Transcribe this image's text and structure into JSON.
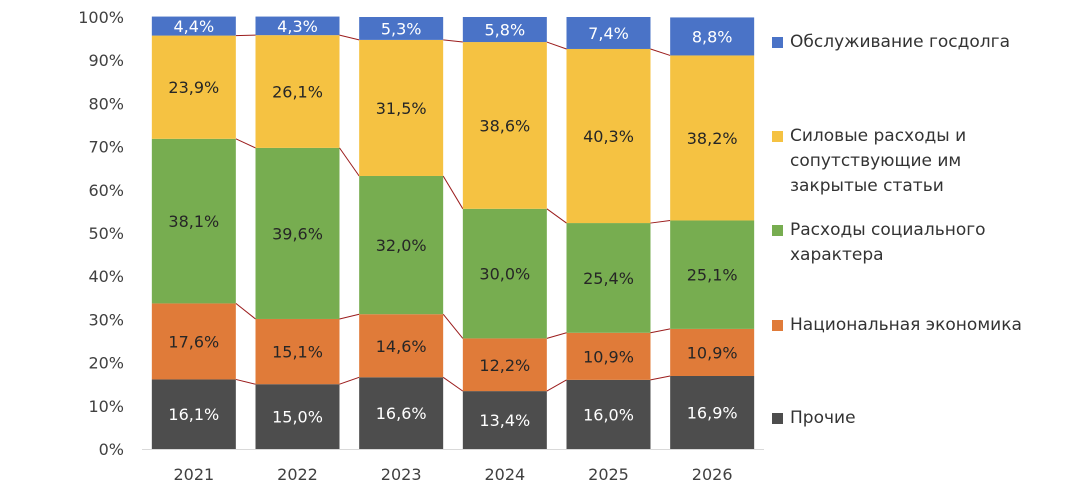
{
  "chart_data": {
    "type": "bar",
    "stacked": true,
    "percent": true,
    "categories": [
      "2021",
      "2022",
      "2023",
      "2024",
      "2025",
      "2026"
    ],
    "y_ticks": [
      "0%",
      "10%",
      "20%",
      "30%",
      "40%",
      "50%",
      "60%",
      "70%",
      "80%",
      "90%",
      "100%"
    ],
    "ylim": [
      0,
      100
    ],
    "legend_position": "right",
    "series": [
      {
        "name": "Прочие",
        "color": "#4d4d4d",
        "label_color": "#ffffff",
        "values": [
          16.1,
          15.0,
          16.6,
          13.4,
          16.0,
          16.9
        ],
        "labels": [
          "16,1%",
          "15,0%",
          "16,6%",
          "13,4%",
          "16,0%",
          "16,9%"
        ]
      },
      {
        "name": "Национальная экономика",
        "color": "#e07b39",
        "label_color": "#262626",
        "values": [
          17.6,
          15.1,
          14.6,
          12.2,
          10.9,
          10.9
        ],
        "labels": [
          "17,6%",
          "15,1%",
          "14,6%",
          "12,2%",
          "10,9%",
          "10,9%"
        ]
      },
      {
        "name": "Расходы социального характера",
        "color": "#77ad50",
        "label_color": "#262626",
        "values": [
          38.1,
          39.6,
          32.0,
          30.0,
          25.4,
          25.1
        ],
        "labels": [
          "38,1%",
          "39,6%",
          "32,0%",
          "30,0%",
          "25,4%",
          "25,1%"
        ]
      },
      {
        "name": "Силовые расходы и сопутствующие им закрытые статьи",
        "color": "#f5c242",
        "label_color": "#262626",
        "values": [
          23.9,
          26.1,
          31.5,
          38.6,
          40.3,
          38.2
        ],
        "labels": [
          "23,9%",
          "26,1%",
          "31,5%",
          "38,6%",
          "40,3%",
          "38,2%"
        ]
      },
      {
        "name": "Обслуживание госдолга",
        "color": "#4a73c7",
        "label_color": "#ffffff",
        "values": [
          4.4,
          4.3,
          5.3,
          5.8,
          7.4,
          8.8
        ],
        "labels": [
          "4,4%",
          "4,3%",
          "5,3%",
          "5,8%",
          "7,4%",
          "8,8%"
        ]
      }
    ],
    "connector_color": "#9b1c1c"
  },
  "legend": {
    "items": [
      {
        "label": "Обслуживание госдолга",
        "color": "#4a73c7"
      },
      {
        "label": "Силовые расходы и сопутствующие им закрытые статьи",
        "color": "#f5c242"
      },
      {
        "label": "Расходы социального характера",
        "color": "#77ad50"
      },
      {
        "label": "Национальная экономика",
        "color": "#e07b39"
      },
      {
        "label": "Прочие",
        "color": "#4d4d4d"
      }
    ]
  }
}
